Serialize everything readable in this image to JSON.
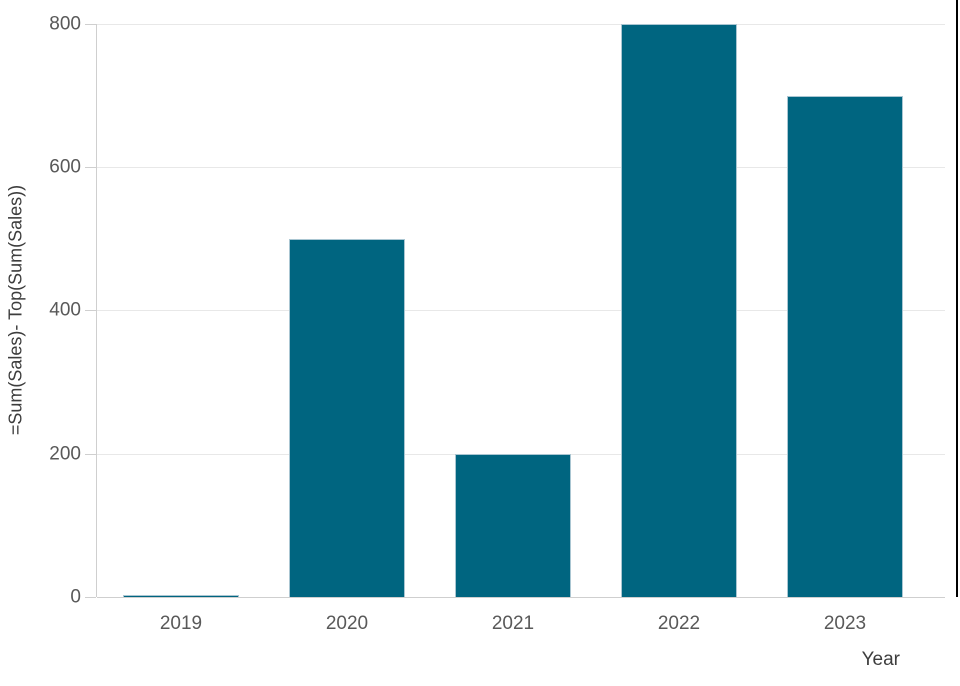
{
  "chart_data": {
    "type": "bar",
    "title": "",
    "categories": [
      "2019",
      "2020",
      "2021",
      "2022",
      "2023"
    ],
    "values": [
      0,
      500,
      200,
      800,
      700
    ],
    "xlabel": "Year",
    "ylabel": "=Sum(Sales)- Top(Sum(Sales))",
    "yticks": [
      0,
      200,
      400,
      600,
      800
    ],
    "ylim": [
      0,
      800
    ],
    "grid": "horizontal",
    "legend": "none",
    "colors": {
      "bar_fill": "#006580",
      "bar_border": "#aac6d2",
      "gridline": "#e8e8e8",
      "axis_line": "#cfcfcf",
      "tick_label": "#595959",
      "axis_title": "#3d3d3d",
      "right_edge_line": "#000000"
    }
  }
}
